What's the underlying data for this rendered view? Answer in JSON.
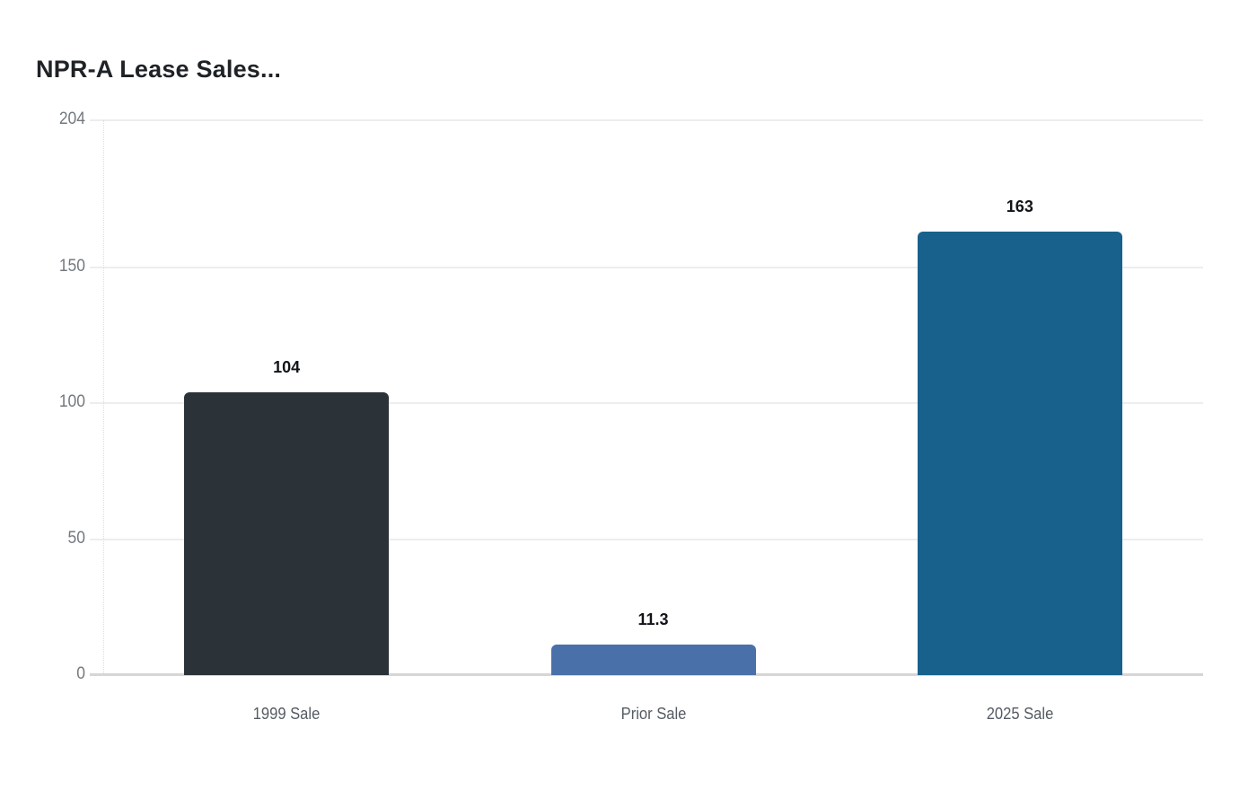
{
  "chart_data": {
    "type": "bar",
    "title": "NPR-A Lease Sales...",
    "categories": [
      "1999 Sale",
      "Prior Sale",
      "2025 Sale"
    ],
    "values": [
      104,
      11.3,
      163
    ],
    "value_labels": [
      "104",
      "11.3",
      "163"
    ],
    "bar_colors": [
      "#2b3338",
      "#4a70a9",
      "#17618c"
    ],
    "y_ticks": [
      0,
      50,
      100,
      150,
      204
    ],
    "y_tick_labels": [
      "0",
      "50",
      "100",
      "150",
      "204"
    ],
    "ylim": [
      0,
      204
    ],
    "xlabel": "",
    "ylabel": "",
    "grid": true,
    "legend": "none",
    "colors": {
      "background": "#ffffff",
      "title_text": "#1f2226",
      "value_label_text": "#111418",
      "y_tick_text": "#73787f",
      "x_label_text": "#555b62",
      "gridline": "#ededed",
      "baseline": "#d6d6d6",
      "axis_dotted_line": "#dddddd"
    }
  }
}
